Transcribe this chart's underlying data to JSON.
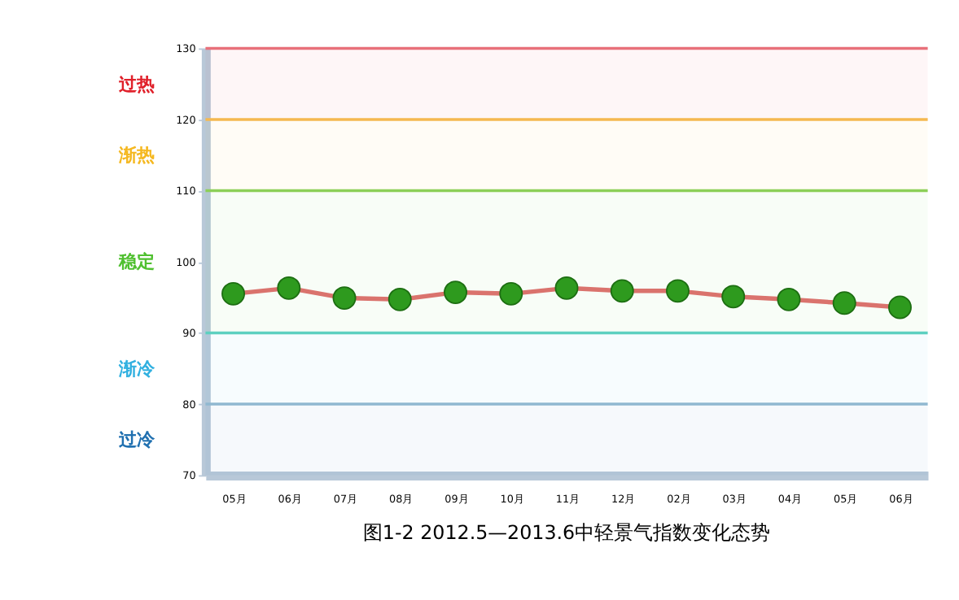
{
  "chart_data": {
    "type": "line",
    "title": "图1-2 2012.5—2013.6中轻景气指数变化态势",
    "categories": [
      "05月",
      "06月",
      "07月",
      "08月",
      "09月",
      "10月",
      "11月",
      "12月",
      "02月",
      "03月",
      "04月",
      "05月",
      "06月"
    ],
    "series": [
      {
        "color": "#e07070",
        "values": [
          95.5,
          96.3,
          94.9,
          94.7,
          95.7,
          95.5,
          96.3,
          95.9,
          95.9,
          95.1,
          94.7,
          94.2,
          93.6
        ]
      }
    ],
    "marker": "circle",
    "ylim": [
      70,
      130
    ],
    "yticks": [
      70,
      80,
      90,
      100,
      110,
      120,
      130
    ],
    "grid": false,
    "ref_lines": [
      {
        "axis": "y",
        "value": 130,
        "color": "#e8707a"
      },
      {
        "axis": "y",
        "value": 120,
        "color": "#f5b850"
      },
      {
        "axis": "y",
        "value": 110,
        "color": "#8ccf58"
      },
      {
        "axis": "y",
        "value": 90,
        "color": "#5dd0c0"
      },
      {
        "axis": "y",
        "value": 80,
        "color": "#90b8d0"
      }
    ],
    "bands": [
      {
        "axis": "y",
        "from": 120,
        "to": 130,
        "label": "过热",
        "color": "#e0202a"
      },
      {
        "axis": "y",
        "from": 110,
        "to": 120,
        "label": "渐热",
        "color": "#f5b820"
      },
      {
        "axis": "y",
        "from": 90,
        "to": 110,
        "label": "稳定",
        "color": "#50c030"
      },
      {
        "axis": "y",
        "from": 80,
        "to": 90,
        "label": "渐冷",
        "color": "#30b0e0"
      },
      {
        "axis": "y",
        "from": 70,
        "to": 80,
        "label": "过冷",
        "color": "#2070b0"
      }
    ]
  }
}
